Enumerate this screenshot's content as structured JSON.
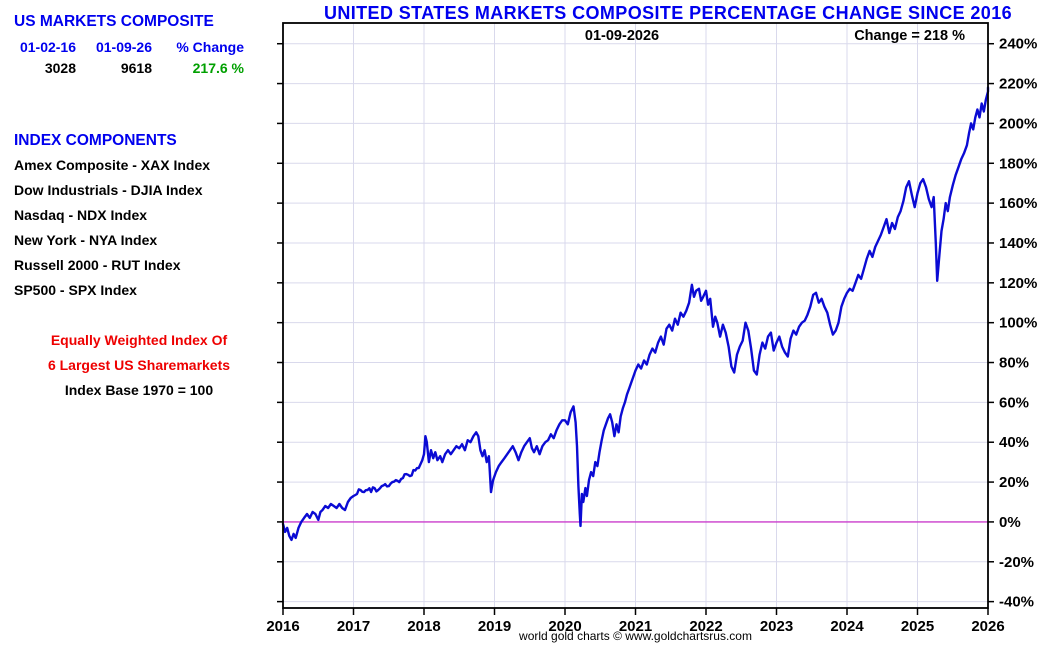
{
  "colors": {
    "accent_blue": "#0000ee",
    "green": "#00a000",
    "red": "#ee0000",
    "line": "#0b0bd4",
    "grid": "#d9d9ec",
    "zero_line": "#cc3ecc",
    "border": "#000000"
  },
  "left_panel": {
    "title": "US MARKETS COMPOSITE",
    "table": {
      "headers": [
        "01-02-16",
        "01-09-26",
        "% Change"
      ],
      "values": [
        "3028",
        "9618",
        "217.6 %"
      ]
    },
    "components_title": "INDEX COMPONENTS",
    "components": [
      "Amex Composite - XAX Index",
      "Dow Industrials - DJIA Index",
      "Nasdaq - NDX Index",
      "New York - NYA Index",
      "Russell 2000 - RUT Index",
      "SP500 - SPX Index"
    ],
    "note_red_line1": "Equally Weighted Index Of",
    "note_red_line2": "6 Largest US Sharemarkets",
    "note_black": "Index Base 1970 = 100"
  },
  "chart_data": {
    "type": "line",
    "title": "UNITED STATES MARKETS COMPOSITE PERCENTAGE CHANGE SINCE 2016",
    "footer": "world gold charts © www.goldchartsrus.com",
    "annotations": {
      "date": "01-09-2026",
      "change": "Change = 218 %"
    },
    "xlabel": "",
    "ylabel": "",
    "xlim": [
      2016,
      2026
    ],
    "ylim": [
      -43.2,
      250.4
    ],
    "x_ticks": [
      2016,
      2017,
      2018,
      2019,
      2020,
      2021,
      2022,
      2023,
      2024,
      2025,
      2026
    ],
    "y_ticks": [
      -40,
      -20,
      0,
      20,
      40,
      60,
      80,
      100,
      120,
      140,
      160,
      180,
      200,
      220,
      240
    ],
    "y_suffix": "%",
    "grid": true,
    "legend": "none",
    "zero_line": 0,
    "series": [
      {
        "name": "US Markets Composite percent change since 2016",
        "points": [
          [
            2016.0,
            -1
          ],
          [
            2016.03,
            -5
          ],
          [
            2016.06,
            -3
          ],
          [
            2016.09,
            -7
          ],
          [
            2016.12,
            -9
          ],
          [
            2016.15,
            -6
          ],
          [
            2016.18,
            -8
          ],
          [
            2016.22,
            -3
          ],
          [
            2016.26,
            0
          ],
          [
            2016.3,
            2
          ],
          [
            2016.34,
            4
          ],
          [
            2016.38,
            2
          ],
          [
            2016.42,
            5
          ],
          [
            2016.46,
            4
          ],
          [
            2016.5,
            1
          ],
          [
            2016.53,
            5
          ],
          [
            2016.56,
            6
          ],
          [
            2016.6,
            8
          ],
          [
            2016.64,
            7
          ],
          [
            2016.68,
            9
          ],
          [
            2016.72,
            8
          ],
          [
            2016.76,
            7
          ],
          [
            2016.8,
            9
          ],
          [
            2016.84,
            7
          ],
          [
            2016.88,
            6
          ],
          [
            2016.92,
            10
          ],
          [
            2016.96,
            12
          ],
          [
            2017.0,
            13
          ],
          [
            2017.05,
            14
          ],
          [
            2017.1,
            16
          ],
          [
            2017.15,
            15
          ],
          [
            2017.2,
            16
          ],
          [
            2017.25,
            15
          ],
          [
            2017.3,
            17
          ],
          [
            2017.35,
            16
          ],
          [
            2017.4,
            18
          ],
          [
            2017.45,
            19
          ],
          [
            2017.5,
            18
          ],
          [
            2017.55,
            20
          ],
          [
            2017.6,
            21
          ],
          [
            2017.65,
            20
          ],
          [
            2017.7,
            22
          ],
          [
            2017.75,
            24
          ],
          [
            2017.8,
            23
          ],
          [
            2017.85,
            26
          ],
          [
            2017.9,
            27
          ],
          [
            2017.95,
            29
          ],
          [
            2018.0,
            34
          ],
          [
            2018.02,
            43
          ],
          [
            2018.04,
            40
          ],
          [
            2018.07,
            30
          ],
          [
            2018.1,
            36
          ],
          [
            2018.13,
            32
          ],
          [
            2018.16,
            35
          ],
          [
            2018.19,
            31
          ],
          [
            2018.23,
            33
          ],
          [
            2018.26,
            30
          ],
          [
            2018.3,
            34
          ],
          [
            2018.34,
            36
          ],
          [
            2018.38,
            34
          ],
          [
            2018.42,
            36
          ],
          [
            2018.46,
            38
          ],
          [
            2018.5,
            37
          ],
          [
            2018.54,
            39
          ],
          [
            2018.58,
            36
          ],
          [
            2018.62,
            41
          ],
          [
            2018.66,
            40
          ],
          [
            2018.7,
            43
          ],
          [
            2018.74,
            45
          ],
          [
            2018.77,
            43
          ],
          [
            2018.8,
            36
          ],
          [
            2018.83,
            33
          ],
          [
            2018.86,
            36
          ],
          [
            2018.89,
            30
          ],
          [
            2018.92,
            33
          ],
          [
            2018.95,
            15
          ],
          [
            2018.98,
            21
          ],
          [
            2019.02,
            25
          ],
          [
            2019.06,
            28
          ],
          [
            2019.1,
            30
          ],
          [
            2019.14,
            32
          ],
          [
            2019.18,
            34
          ],
          [
            2019.22,
            36
          ],
          [
            2019.26,
            38
          ],
          [
            2019.3,
            35
          ],
          [
            2019.34,
            31
          ],
          [
            2019.38,
            35
          ],
          [
            2019.42,
            38
          ],
          [
            2019.46,
            40
          ],
          [
            2019.5,
            42
          ],
          [
            2019.53,
            37
          ],
          [
            2019.56,
            35
          ],
          [
            2019.6,
            38
          ],
          [
            2019.64,
            34
          ],
          [
            2019.68,
            38
          ],
          [
            2019.72,
            40
          ],
          [
            2019.76,
            41
          ],
          [
            2019.8,
            44
          ],
          [
            2019.84,
            42
          ],
          [
            2019.88,
            46
          ],
          [
            2019.92,
            49
          ],
          [
            2019.96,
            51
          ],
          [
            2020.0,
            51
          ],
          [
            2020.04,
            49
          ],
          [
            2020.08,
            55
          ],
          [
            2020.12,
            58
          ],
          [
            2020.15,
            50
          ],
          [
            2020.17,
            38
          ],
          [
            2020.19,
            18
          ],
          [
            2020.21,
            4
          ],
          [
            2020.22,
            -2
          ],
          [
            2020.24,
            14
          ],
          [
            2020.26,
            10
          ],
          [
            2020.29,
            17
          ],
          [
            2020.31,
            13
          ],
          [
            2020.34,
            21
          ],
          [
            2020.37,
            25
          ],
          [
            2020.4,
            23
          ],
          [
            2020.43,
            30
          ],
          [
            2020.46,
            28
          ],
          [
            2020.49,
            35
          ],
          [
            2020.52,
            41
          ],
          [
            2020.55,
            46
          ],
          [
            2020.58,
            49
          ],
          [
            2020.61,
            52
          ],
          [
            2020.64,
            54
          ],
          [
            2020.67,
            50
          ],
          [
            2020.7,
            43
          ],
          [
            2020.73,
            49
          ],
          [
            2020.76,
            45
          ],
          [
            2020.79,
            53
          ],
          [
            2020.82,
            57
          ],
          [
            2020.85,
            60
          ],
          [
            2020.88,
            64
          ],
          [
            2020.91,
            67
          ],
          [
            2020.94,
            70
          ],
          [
            2020.97,
            73
          ],
          [
            2021.0,
            76
          ],
          [
            2021.04,
            79
          ],
          [
            2021.08,
            77
          ],
          [
            2021.12,
            81
          ],
          [
            2021.16,
            79
          ],
          [
            2021.2,
            84
          ],
          [
            2021.24,
            87
          ],
          [
            2021.28,
            85
          ],
          [
            2021.32,
            90
          ],
          [
            2021.36,
            93
          ],
          [
            2021.4,
            89
          ],
          [
            2021.44,
            97
          ],
          [
            2021.48,
            99
          ],
          [
            2021.52,
            96
          ],
          [
            2021.56,
            102
          ],
          [
            2021.6,
            99
          ],
          [
            2021.64,
            105
          ],
          [
            2021.68,
            103
          ],
          [
            2021.72,
            106
          ],
          [
            2021.76,
            110
          ],
          [
            2021.8,
            119
          ],
          [
            2021.83,
            113
          ],
          [
            2021.86,
            116
          ],
          [
            2021.9,
            117
          ],
          [
            2021.93,
            111
          ],
          [
            2021.96,
            113
          ],
          [
            2022.0,
            116
          ],
          [
            2022.03,
            109
          ],
          [
            2022.06,
            112
          ],
          [
            2022.1,
            98
          ],
          [
            2022.13,
            103
          ],
          [
            2022.16,
            100
          ],
          [
            2022.2,
            93
          ],
          [
            2022.24,
            99
          ],
          [
            2022.28,
            95
          ],
          [
            2022.32,
            88
          ],
          [
            2022.36,
            78
          ],
          [
            2022.4,
            75
          ],
          [
            2022.44,
            84
          ],
          [
            2022.48,
            88
          ],
          [
            2022.52,
            91
          ],
          [
            2022.56,
            100
          ],
          [
            2022.6,
            96
          ],
          [
            2022.64,
            87
          ],
          [
            2022.68,
            76
          ],
          [
            2022.72,
            74
          ],
          [
            2022.76,
            84
          ],
          [
            2022.8,
            90
          ],
          [
            2022.84,
            87
          ],
          [
            2022.88,
            93
          ],
          [
            2022.92,
            95
          ],
          [
            2022.96,
            86
          ],
          [
            2023.0,
            90
          ],
          [
            2023.04,
            93
          ],
          [
            2023.08,
            88
          ],
          [
            2023.12,
            85
          ],
          [
            2023.16,
            83
          ],
          [
            2023.2,
            92
          ],
          [
            2023.24,
            96
          ],
          [
            2023.28,
            94
          ],
          [
            2023.32,
            98
          ],
          [
            2023.36,
            100
          ],
          [
            2023.4,
            101
          ],
          [
            2023.44,
            104
          ],
          [
            2023.48,
            108
          ],
          [
            2023.52,
            114
          ],
          [
            2023.56,
            115
          ],
          [
            2023.6,
            110
          ],
          [
            2023.64,
            112
          ],
          [
            2023.68,
            108
          ],
          [
            2023.72,
            105
          ],
          [
            2023.76,
            99
          ],
          [
            2023.8,
            94
          ],
          [
            2023.84,
            96
          ],
          [
            2023.88,
            100
          ],
          [
            2023.92,
            108
          ],
          [
            2023.96,
            112
          ],
          [
            2024.0,
            115
          ],
          [
            2024.04,
            117
          ],
          [
            2024.08,
            116
          ],
          [
            2024.12,
            120
          ],
          [
            2024.16,
            124
          ],
          [
            2024.2,
            122
          ],
          [
            2024.24,
            127
          ],
          [
            2024.28,
            132
          ],
          [
            2024.32,
            136
          ],
          [
            2024.36,
            133
          ],
          [
            2024.4,
            138
          ],
          [
            2024.44,
            141
          ],
          [
            2024.48,
            144
          ],
          [
            2024.52,
            148
          ],
          [
            2024.56,
            152
          ],
          [
            2024.6,
            145
          ],
          [
            2024.64,
            150
          ],
          [
            2024.68,
            147
          ],
          [
            2024.72,
            153
          ],
          [
            2024.76,
            156
          ],
          [
            2024.8,
            161
          ],
          [
            2024.84,
            168
          ],
          [
            2024.88,
            171
          ],
          [
            2024.92,
            164
          ],
          [
            2024.96,
            158
          ],
          [
            2025.0,
            165
          ],
          [
            2025.04,
            170
          ],
          [
            2025.08,
            172
          ],
          [
            2025.12,
            168
          ],
          [
            2025.16,
            162
          ],
          [
            2025.2,
            158
          ],
          [
            2025.23,
            163
          ],
          [
            2025.26,
            140
          ],
          [
            2025.28,
            121
          ],
          [
            2025.31,
            134
          ],
          [
            2025.34,
            146
          ],
          [
            2025.37,
            152
          ],
          [
            2025.4,
            160
          ],
          [
            2025.43,
            156
          ],
          [
            2025.46,
            163
          ],
          [
            2025.5,
            169
          ],
          [
            2025.54,
            174
          ],
          [
            2025.58,
            178
          ],
          [
            2025.62,
            182
          ],
          [
            2025.66,
            185
          ],
          [
            2025.7,
            189
          ],
          [
            2025.73,
            195
          ],
          [
            2025.76,
            200
          ],
          [
            2025.79,
            197
          ],
          [
            2025.82,
            203
          ],
          [
            2025.85,
            207
          ],
          [
            2025.88,
            203
          ],
          [
            2025.91,
            210
          ],
          [
            2025.94,
            206
          ],
          [
            2025.97,
            212
          ],
          [
            2026.0,
            216
          ],
          [
            2026.02,
            218
          ]
        ]
      }
    ]
  }
}
